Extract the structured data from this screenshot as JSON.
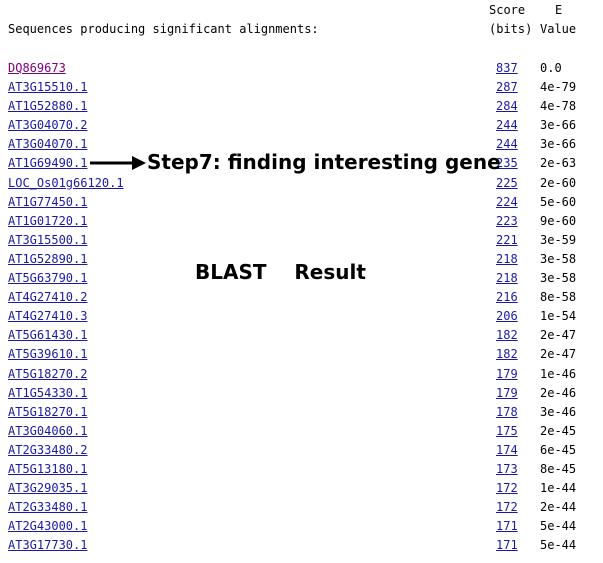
{
  "header": {
    "sequences_label": "Sequences producing significant alignments:",
    "score_line1": "Score",
    "score_line2": "(bits)",
    "e_line1": "E",
    "e_line2": "Value"
  },
  "rows": [
    {
      "accession": "DQ869673",
      "score": "837",
      "evalue": "0.0"
    },
    {
      "accession": "AT3G15510.1",
      "score": "287",
      "evalue": "4e-79"
    },
    {
      "accession": "AT1G52880.1",
      "score": "284",
      "evalue": "4e-78"
    },
    {
      "accession": "AT3G04070.2",
      "score": "244",
      "evalue": "3e-66"
    },
    {
      "accession": "AT3G04070.1",
      "score": "244",
      "evalue": "3e-66"
    },
    {
      "accession": "AT1G69490.1",
      "score": "235",
      "evalue": "2e-63"
    },
    {
      "accession": "LOC_Os01g66120.1",
      "score": "225",
      "evalue": "2e-60"
    },
    {
      "accession": "AT1G77450.1",
      "score": "224",
      "evalue": "5e-60"
    },
    {
      "accession": "AT1G01720.1",
      "score": "223",
      "evalue": "9e-60"
    },
    {
      "accession": "AT3G15500.1",
      "score": "221",
      "evalue": "3e-59"
    },
    {
      "accession": "AT1G52890.1",
      "score": "218",
      "evalue": "3e-58"
    },
    {
      "accession": "AT5G63790.1",
      "score": "218",
      "evalue": "3e-58"
    },
    {
      "accession": "AT4G27410.2",
      "score": "216",
      "evalue": "8e-58"
    },
    {
      "accession": "AT4G27410.3",
      "score": "206",
      "evalue": "1e-54"
    },
    {
      "accession": "AT5G61430.1",
      "score": "182",
      "evalue": "2e-47"
    },
    {
      "accession": "AT5G39610.1",
      "score": "182",
      "evalue": "2e-47"
    },
    {
      "accession": "AT5G18270.2",
      "score": "179",
      "evalue": "1e-46"
    },
    {
      "accession": "AT1G54330.1",
      "score": "179",
      "evalue": "2e-46"
    },
    {
      "accession": "AT5G18270.1",
      "score": "178",
      "evalue": "3e-46"
    },
    {
      "accession": "AT3G04060.1",
      "score": "175",
      "evalue": "2e-45"
    },
    {
      "accession": "AT2G33480.2",
      "score": "174",
      "evalue": "6e-45"
    },
    {
      "accession": "AT5G13180.1",
      "score": "173",
      "evalue": "8e-45"
    },
    {
      "accession": "AT3G29035.1",
      "score": "172",
      "evalue": "1e-44"
    },
    {
      "accession": "AT2G33480.1",
      "score": "172",
      "evalue": "2e-44"
    },
    {
      "accession": "AT2G43000.1",
      "score": "171",
      "evalue": "5e-44"
    },
    {
      "accession": "AT3G17730.1",
      "score": "171",
      "evalue": "5e-44"
    }
  ],
  "annotations": {
    "step_label": "Step7: finding interesting gene",
    "blast_label": "BLAST",
    "result_label": "Result"
  },
  "colors": {
    "link": "#1a1aa6",
    "visited_link": "#800080",
    "text": "#000000"
  }
}
